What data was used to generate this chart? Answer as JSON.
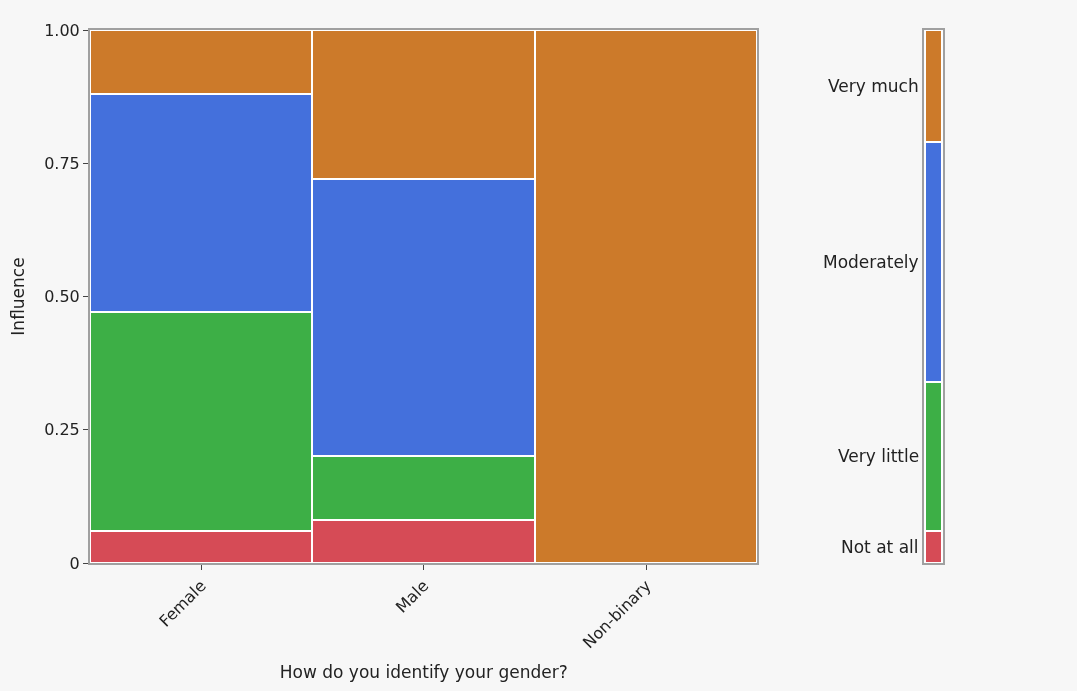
{
  "chart_data": [
    {
      "type": "bar",
      "stacked": true,
      "xlabel": "How do you identify your gender?",
      "ylabel": "Influence",
      "categories": [
        "Female",
        "Male",
        "Non-binary"
      ],
      "series": [
        {
          "color": "#d64b56",
          "values": [
            0.06,
            0.08,
            0
          ]
        },
        {
          "color": "#3daf46",
          "values": [
            0.41,
            0.12,
            0
          ]
        },
        {
          "color": "#4470dc",
          "values": [
            0.41,
            0.52,
            0
          ]
        },
        {
          "color": "#cc7a2a",
          "values": [
            0.12,
            0.28,
            1
          ]
        }
      ],
      "ylim": [
        0,
        1
      ],
      "yticks": [
        0,
        0.25,
        {
          "value": 0.5,
          "label": "0.50"
        },
        0.75,
        {
          "value": 1,
          "label": "1.00"
        }
      ],
      "legend": false
    },
    {
      "type": "bar",
      "stacked": true,
      "categories": [
        null
      ],
      "series": [
        {
          "name": "Not at all",
          "color": "#d64b56",
          "values": [
            0.06
          ]
        },
        {
          "name": "Very little",
          "color": "#3daf46",
          "values": [
            0.28
          ]
        },
        {
          "name": "Moderately",
          "color": "#4470dc",
          "values": [
            0.45
          ]
        },
        {
          "name": "Very much",
          "color": "#cc7a2a",
          "values": [
            0.21
          ]
        }
      ],
      "ylim": [
        0,
        1
      ],
      "tick_labels": false,
      "legend": false
    }
  ]
}
